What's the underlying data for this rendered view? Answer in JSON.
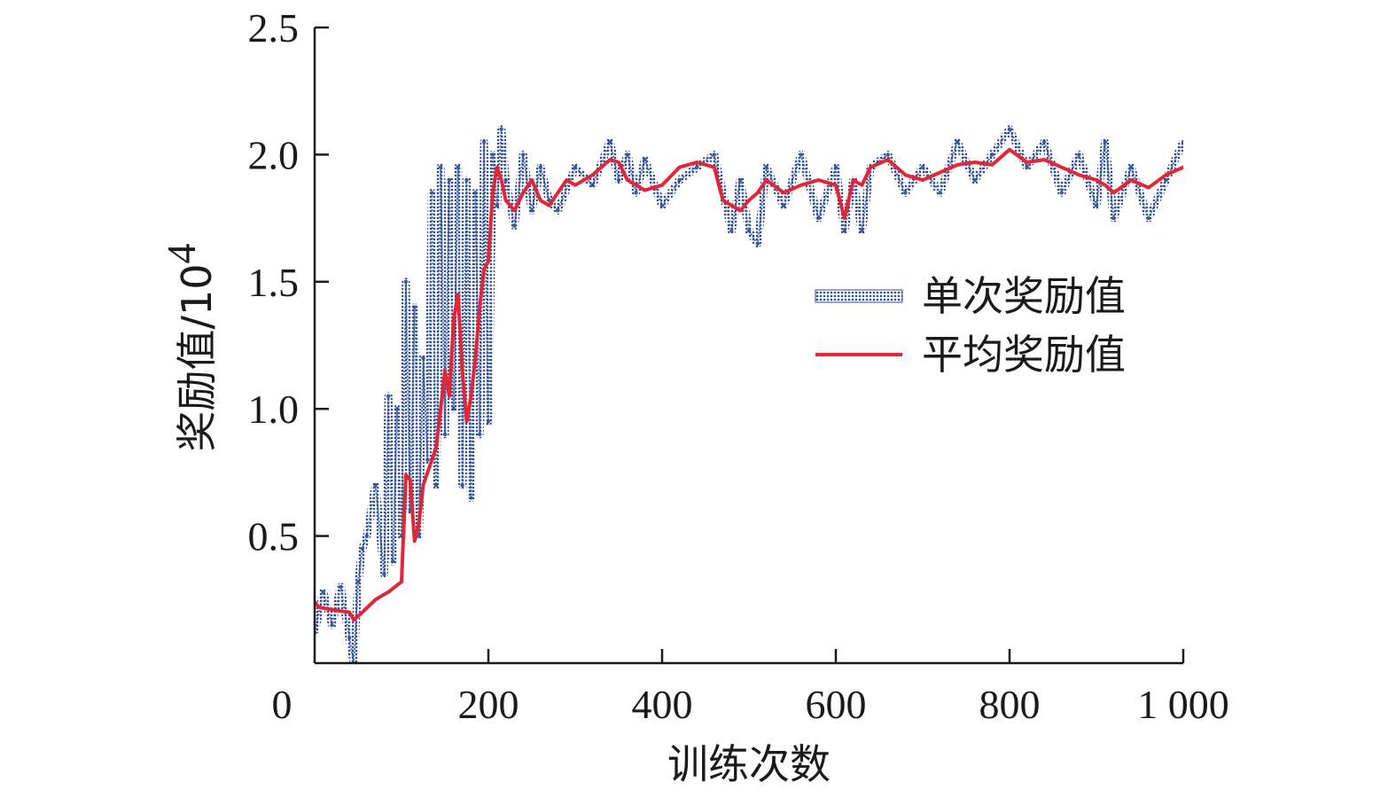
{
  "chart_data": {
    "type": "line",
    "title": "",
    "xlabel": "训练次数",
    "ylabel": "奖励值/10",
    "ylabel_sup": "4",
    "xlim": [
      0,
      1000
    ],
    "ylim": [
      0,
      2.5
    ],
    "x_ticks": [
      0,
      200,
      400,
      600,
      800,
      1000
    ],
    "x_tick_labels": [
      "0",
      "200",
      "400",
      "600",
      "800",
      "1 000"
    ],
    "y_ticks": [
      0.5,
      1.0,
      1.5,
      2.0,
      2.5
    ],
    "y_tick_labels": [
      "0.5",
      "1.0",
      "1.5",
      "2.0",
      "2.5"
    ],
    "grid": false,
    "legend_position": "right",
    "series": [
      {
        "name": "单次奖励值",
        "color": "#3a5aa0",
        "style": "dotted-band",
        "x": [
          0,
          10,
          20,
          30,
          40,
          45,
          50,
          55,
          60,
          70,
          80,
          85,
          90,
          95,
          100,
          105,
          110,
          115,
          120,
          125,
          130,
          135,
          140,
          145,
          150,
          155,
          160,
          165,
          170,
          175,
          180,
          185,
          190,
          195,
          200,
          205,
          210,
          215,
          220,
          230,
          240,
          250,
          260,
          270,
          280,
          300,
          320,
          340,
          350,
          360,
          370,
          380,
          400,
          420,
          440,
          460,
          480,
          490,
          500,
          510,
          520,
          540,
          560,
          580,
          600,
          610,
          620,
          630,
          640,
          660,
          680,
          700,
          720,
          740,
          760,
          780,
          800,
          820,
          840,
          860,
          880,
          900,
          910,
          920,
          940,
          960,
          980,
          1000
        ],
        "values": [
          0.12,
          0.28,
          0.15,
          0.3,
          0.1,
          0.0,
          0.32,
          0.45,
          0.5,
          0.7,
          0.35,
          1.05,
          0.4,
          1.0,
          0.5,
          1.5,
          0.6,
          1.4,
          0.5,
          1.2,
          0.8,
          1.85,
          0.7,
          1.95,
          0.9,
          1.9,
          1.0,
          1.95,
          0.7,
          1.9,
          0.65,
          1.85,
          0.9,
          2.05,
          0.95,
          2.0,
          1.8,
          2.1,
          1.9,
          1.72,
          2.0,
          1.78,
          1.95,
          1.82,
          1.78,
          1.95,
          1.88,
          2.05,
          1.9,
          2.0,
          1.85,
          1.98,
          1.8,
          1.9,
          1.95,
          2.0,
          1.7,
          1.9,
          1.7,
          1.65,
          1.95,
          1.8,
          2.0,
          1.75,
          1.95,
          1.7,
          1.9,
          1.7,
          1.95,
          2.0,
          1.85,
          1.95,
          1.85,
          2.05,
          1.9,
          2.0,
          2.1,
          1.95,
          2.05,
          1.85,
          2.0,
          1.8,
          2.05,
          1.75,
          1.95,
          1.75,
          1.9,
          2.05
        ]
      },
      {
        "name": "平均奖励值",
        "color": "#e32636",
        "style": "solid",
        "x": [
          0,
          5,
          20,
          40,
          45,
          55,
          70,
          85,
          100,
          105,
          110,
          115,
          120,
          125,
          130,
          140,
          150,
          155,
          160,
          165,
          170,
          175,
          180,
          185,
          190,
          195,
          200,
          205,
          210,
          215,
          220,
          230,
          240,
          250,
          260,
          270,
          280,
          290,
          300,
          320,
          340,
          350,
          360,
          370,
          380,
          400,
          420,
          440,
          460,
          470,
          480,
          490,
          500,
          510,
          520,
          540,
          560,
          580,
          600,
          610,
          620,
          630,
          640,
          660,
          680,
          700,
          720,
          740,
          760,
          780,
          800,
          820,
          840,
          860,
          880,
          900,
          910,
          920,
          940,
          960,
          980,
          1000
        ],
        "values": [
          0.24,
          0.22,
          0.21,
          0.2,
          0.17,
          0.2,
          0.25,
          0.28,
          0.32,
          0.74,
          0.72,
          0.48,
          0.55,
          0.7,
          0.75,
          0.85,
          1.15,
          1.05,
          1.35,
          1.45,
          1.15,
          0.95,
          1.05,
          1.2,
          1.4,
          1.55,
          1.58,
          1.85,
          1.95,
          1.9,
          1.82,
          1.78,
          1.85,
          1.9,
          1.82,
          1.8,
          1.85,
          1.9,
          1.88,
          1.92,
          1.98,
          1.97,
          1.9,
          1.88,
          1.86,
          1.88,
          1.95,
          1.97,
          1.95,
          1.82,
          1.8,
          1.78,
          1.82,
          1.85,
          1.9,
          1.85,
          1.88,
          1.9,
          1.88,
          1.75,
          1.9,
          1.88,
          1.95,
          1.98,
          1.92,
          1.9,
          1.93,
          1.96,
          1.97,
          1.96,
          2.02,
          1.97,
          1.98,
          1.95,
          1.92,
          1.9,
          1.88,
          1.85,
          1.9,
          1.87,
          1.92,
          1.95
        ]
      }
    ]
  }
}
